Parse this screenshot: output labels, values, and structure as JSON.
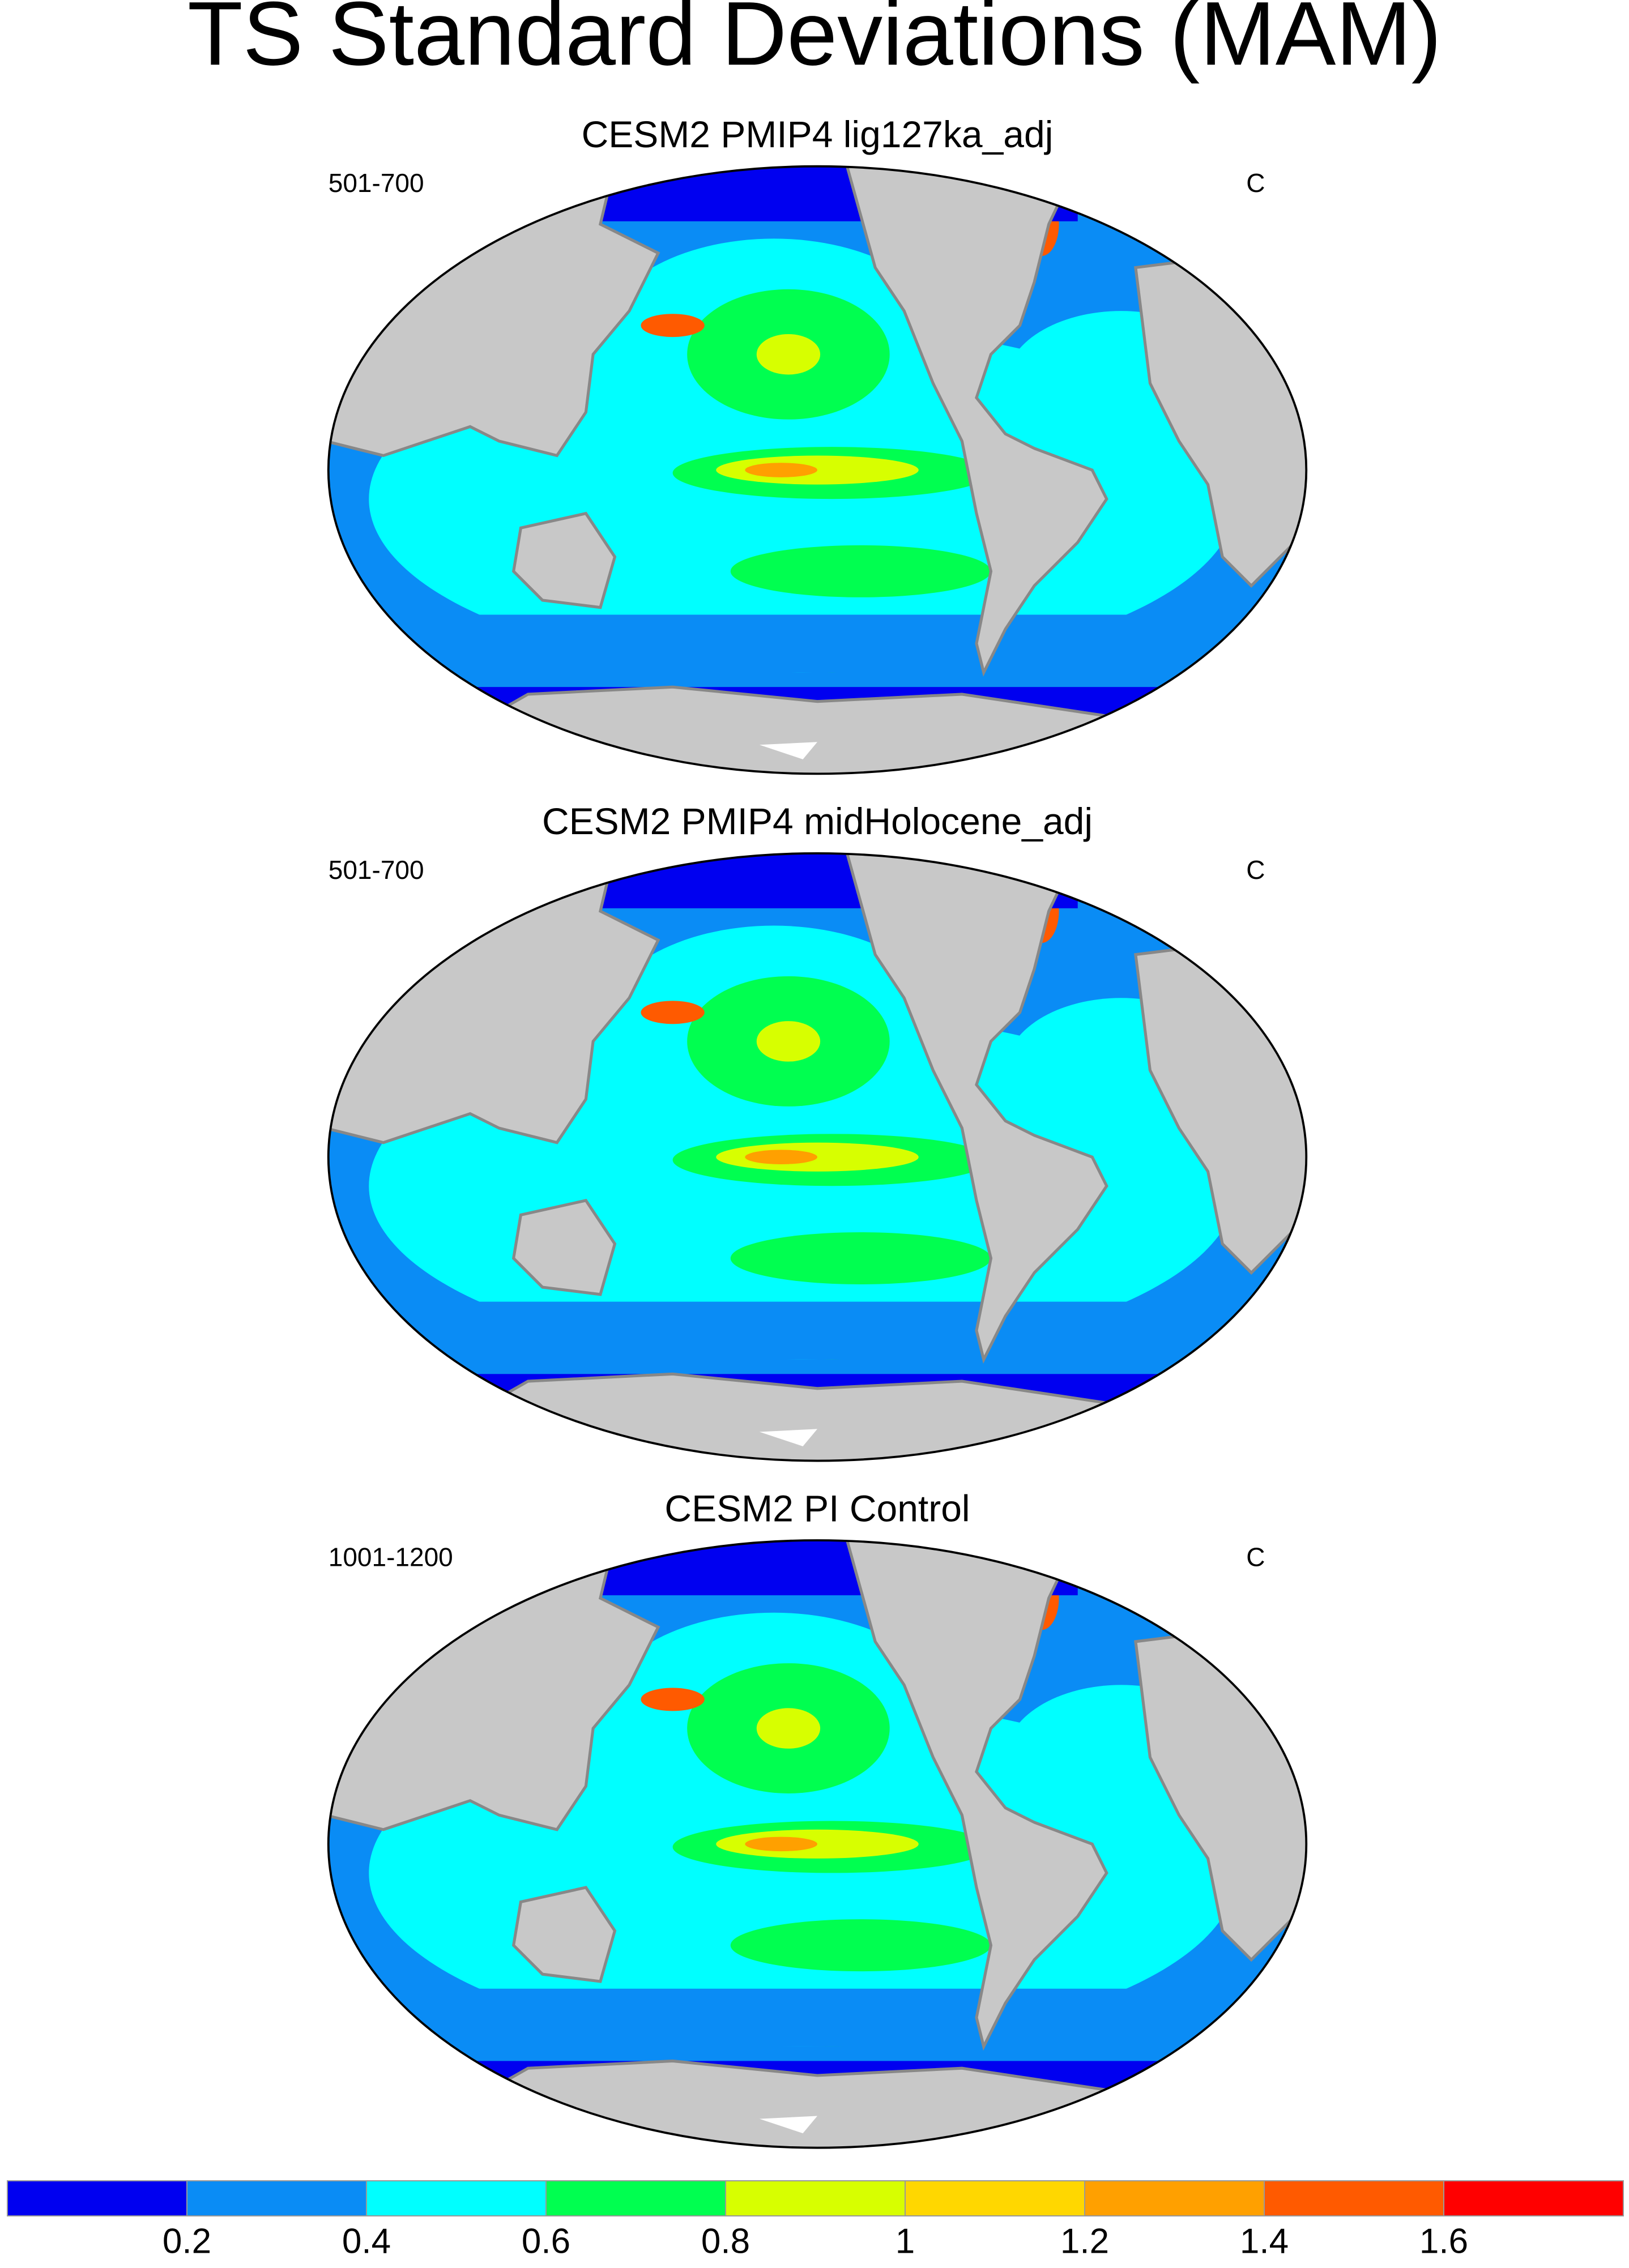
{
  "title": "TS Standard Deviations (MAM)",
  "panels": [
    {
      "title": "CESM2 PMIP4 lig127ka_adj",
      "left": "501-700",
      "right": "C"
    },
    {
      "title": "CESM2 PMIP4 midHolocene_adj",
      "left": "501-700",
      "right": "C"
    },
    {
      "title": "CESM2 PI Control",
      "left": "1001-1200",
      "right": "C"
    }
  ],
  "colorbar": {
    "levels": [
      0.2,
      0.4,
      0.6,
      0.8,
      1,
      1.2,
      1.4,
      1.6
    ],
    "colors": [
      "#0000f0",
      "#0a8cf5",
      "#00ffff",
      "#00ff50",
      "#d7ff00",
      "#ffd700",
      "#ffa000",
      "#ff5a00",
      "#ff0000"
    ]
  }
}
